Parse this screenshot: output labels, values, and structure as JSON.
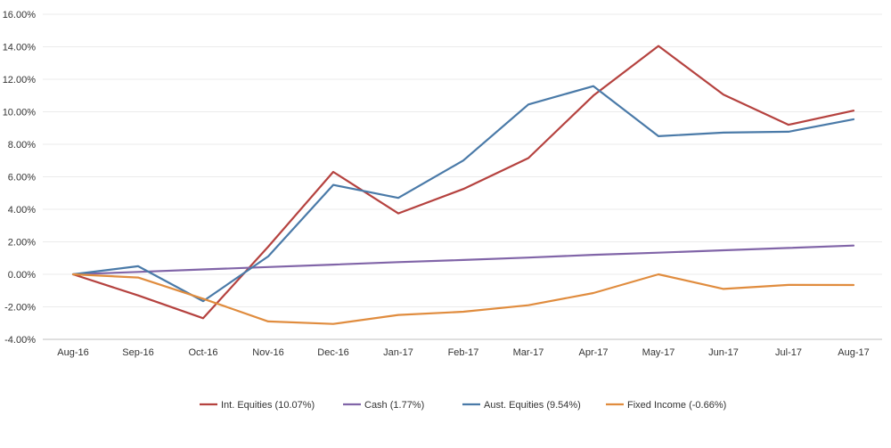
{
  "chart_data": {
    "type": "line",
    "title": "",
    "xlabel": "",
    "ylabel": "",
    "ylim": [
      -4,
      16
    ],
    "y_tick_step": 2,
    "y_tick_labels": [
      "16.00%",
      "14.00%",
      "12.00%",
      "10.00%",
      "8.00%",
      "6.00%",
      "4.00%",
      "2.00%",
      "0.00%",
      "-2.00%",
      "-4.00%"
    ],
    "grid": true,
    "legend_position": "bottom",
    "categories": [
      "Aug-16",
      "Sep-16",
      "Oct-16",
      "Nov-16",
      "Dec-16",
      "Jan-17",
      "Feb-17",
      "Mar-17",
      "Apr-17",
      "May-17",
      "Jun-17",
      "Jul-17",
      "Aug-17"
    ],
    "series": [
      {
        "name": "Int. Equities (10.07%)",
        "color": "#b5423f",
        "values": [
          0,
          -1.3,
          -2.7,
          1.7,
          6.3,
          3.75,
          5.25,
          7.15,
          11.0,
          14.05,
          11.05,
          9.2,
          10.07
        ]
      },
      {
        "name": "Cash (1.77%)",
        "color": "#8165a8",
        "values": [
          0,
          0.15,
          0.3,
          0.45,
          0.6,
          0.75,
          0.88,
          1.03,
          1.2,
          1.33,
          1.48,
          1.62,
          1.77
        ]
      },
      {
        "name": "Aust. Equities (9.54%)",
        "color": "#4a7aa8",
        "values": [
          0,
          0.5,
          -1.65,
          1.1,
          5.5,
          4.7,
          7.0,
          10.45,
          11.58,
          8.5,
          8.72,
          8.77,
          9.54
        ]
      },
      {
        "name": "Fixed Income (-0.66%)",
        "color": "#e08c3e",
        "values": [
          0,
          -0.2,
          -1.5,
          -2.9,
          -3.05,
          -2.5,
          -2.3,
          -1.9,
          -1.15,
          0.0,
          -0.9,
          -0.65,
          -0.66
        ]
      }
    ]
  }
}
